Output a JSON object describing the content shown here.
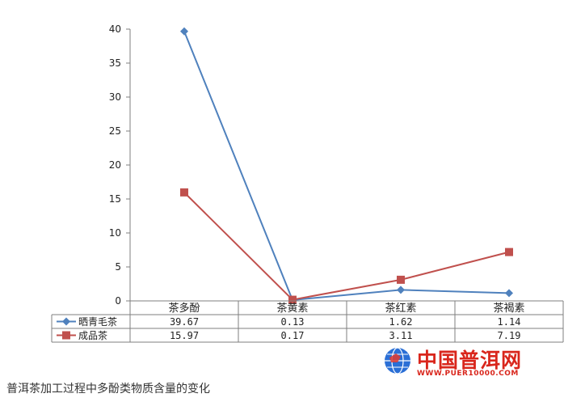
{
  "chart_data": {
    "type": "line",
    "categories": [
      "茶多酚",
      "茶黄素",
      "茶红素",
      "茶褐素"
    ],
    "series": [
      {
        "name": "晒青毛茶",
        "values": [
          39.67,
          0.13,
          1.62,
          1.14
        ],
        "labels": [
          "39.67",
          "0.13",
          "1.62",
          "1.14"
        ],
        "color": "#4f81bd",
        "marker": "diamond"
      },
      {
        "name": "成品茶",
        "values": [
          15.97,
          0.17,
          3.11,
          7.19
        ],
        "labels": [
          "15.97",
          "0.17",
          "3.11",
          "7.19"
        ],
        "color": "#c0504d",
        "marker": "square"
      }
    ],
    "ylim": [
      0,
      40
    ],
    "yticks": [
      0,
      5,
      10,
      15,
      20,
      25,
      30,
      35,
      40
    ],
    "grid": false,
    "data_table": true
  },
  "caption": "普洱茶加工过程中多酚类物质含量的变化",
  "watermark": {
    "title": "中国普洱网",
    "url": "WWW.PUER10000.COM",
    "color": "#d9261c"
  }
}
